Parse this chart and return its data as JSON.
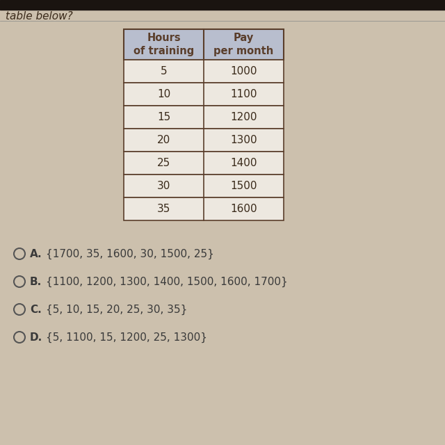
{
  "title_text": "table below?",
  "col_headers": [
    "Hours\nof training",
    "Pay\nper month"
  ],
  "rows": [
    [
      "5",
      "1000"
    ],
    [
      "10",
      "1100"
    ],
    [
      "15",
      "1200"
    ],
    [
      "20",
      "1300"
    ],
    [
      "25",
      "1400"
    ],
    [
      "30",
      "1500"
    ],
    [
      "35",
      "1600"
    ]
  ],
  "choices": [
    [
      "A.",
      "{1700, 35, 1600, 30, 1500, 25}"
    ],
    [
      "B.",
      "{1100, 1200, 1300, 1400, 1500, 1600, 1700}"
    ],
    [
      "C.",
      "{5, 10, 15, 20, 25, 30, 35}"
    ],
    [
      "D.",
      "{5, 1100, 15, 1200, 25, 1300}"
    ]
  ],
  "bg_color": "#ccc0ad",
  "header_bg": "#b8bece",
  "table_border_color": "#5a3e2b",
  "header_text_color": "#5a3e2b",
  "cell_text_color": "#3a2a1a",
  "cell_bg": "#ede8e0",
  "choice_label_color": "#3a3a3a",
  "choice_text_color": "#3a3a3a",
  "title_color": "#3a2a1a",
  "top_bar_color": "#1a1410"
}
